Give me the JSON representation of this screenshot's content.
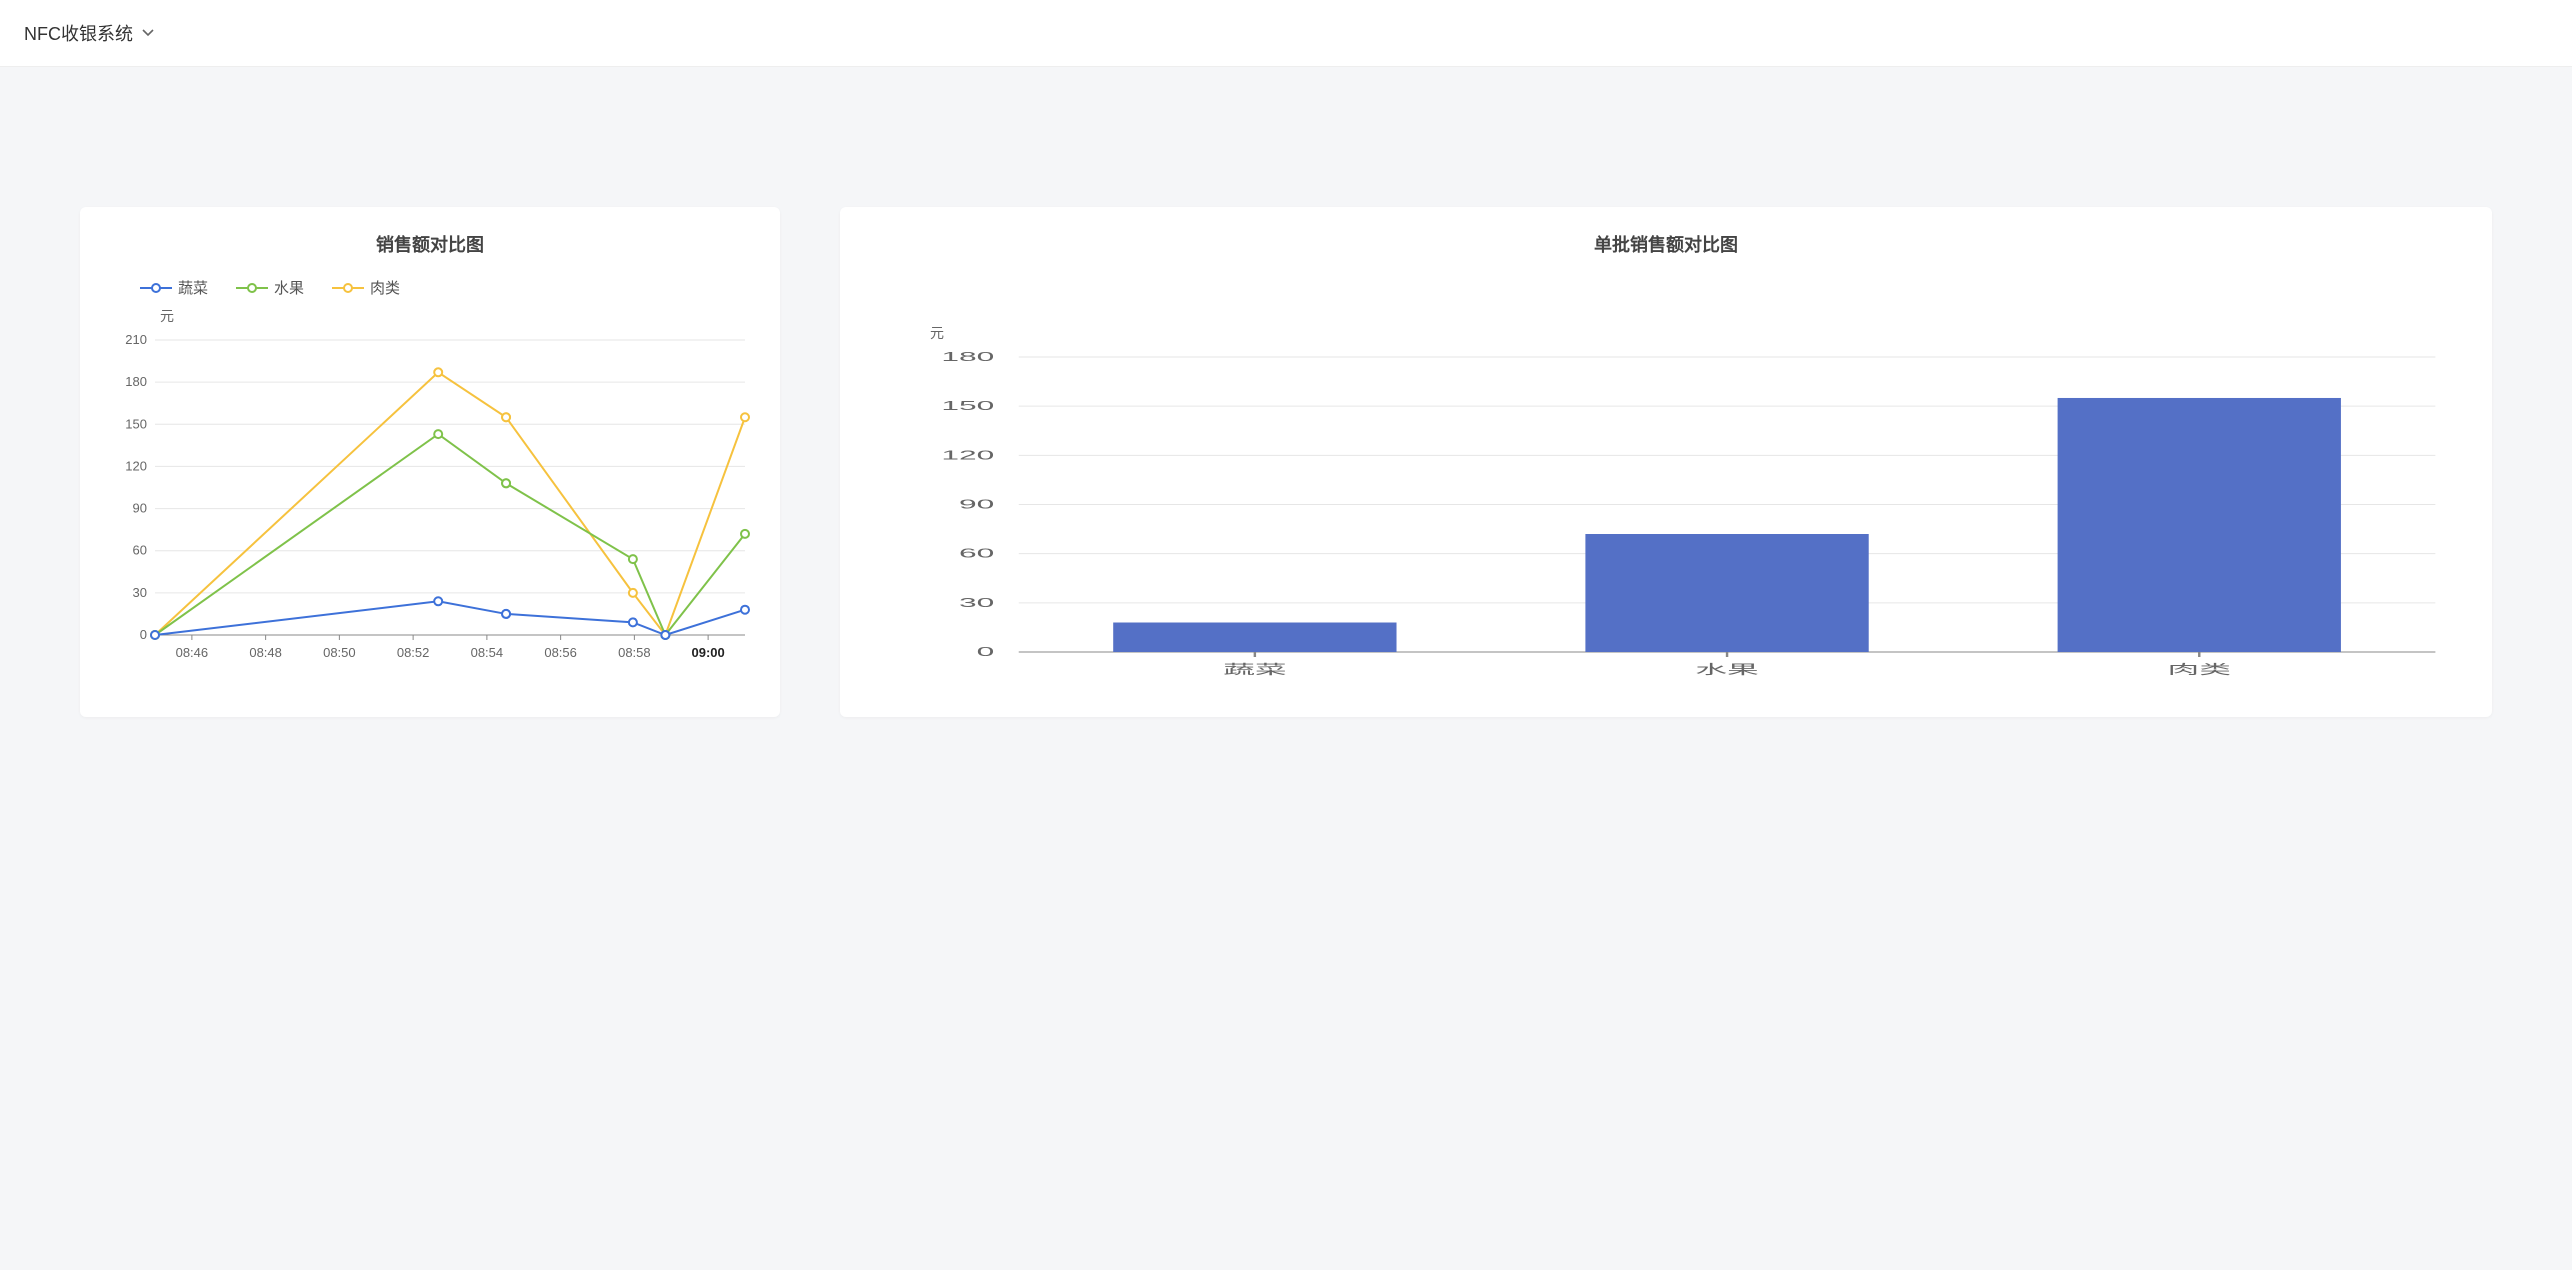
{
  "header": {
    "title": "NFC收银系统"
  },
  "line_chart": {
    "title": "销售额对比图",
    "y_unit": "元",
    "type": "line",
    "legend": [
      {
        "label": "蔬菜",
        "color": "#3d71d9"
      },
      {
        "label": "水果",
        "color": "#7fc24a"
      },
      {
        "label": "肉类",
        "color": "#f6c23e"
      }
    ],
    "y_ticks": [
      0,
      30,
      60,
      90,
      120,
      150,
      180,
      210
    ],
    "ylim": [
      0,
      210
    ],
    "x_labels": [
      "08:46",
      "08:48",
      "08:50",
      "08:52",
      "08:54",
      "08:56",
      "08:58",
      "09:00"
    ],
    "x_bold_index": 7,
    "x_positions": [
      0.0,
      0.48,
      0.595,
      0.595,
      0.81,
      0.865,
      0.865,
      1.0
    ],
    "series": {
      "veg": [
        0,
        24,
        15,
        15,
        9,
        0,
        0,
        18
      ],
      "fruit": [
        0,
        143,
        108,
        108,
        54,
        0,
        0,
        72
      ],
      "meat": [
        0,
        187,
        155,
        155,
        30,
        0,
        0,
        155
      ]
    },
    "colors": {
      "veg": "#3d71d9",
      "fruit": "#7fc24a",
      "meat": "#f6c23e"
    },
    "grid_color": "#e6e6e6",
    "background_color": "#ffffff",
    "marker_radius": 4,
    "line_width": 2
  },
  "bar_chart": {
    "title": "单批销售额对比图",
    "y_unit": "元",
    "type": "bar",
    "categories": [
      "蔬菜",
      "水果",
      "肉类"
    ],
    "values": [
      18,
      72,
      155
    ],
    "bar_color": "#5470c6",
    "y_ticks": [
      0,
      30,
      60,
      90,
      120,
      150,
      180
    ],
    "ylim": [
      0,
      180
    ],
    "grid_color": "#e6e6e6",
    "background_color": "#ffffff",
    "bar_width_ratio": 0.6
  }
}
